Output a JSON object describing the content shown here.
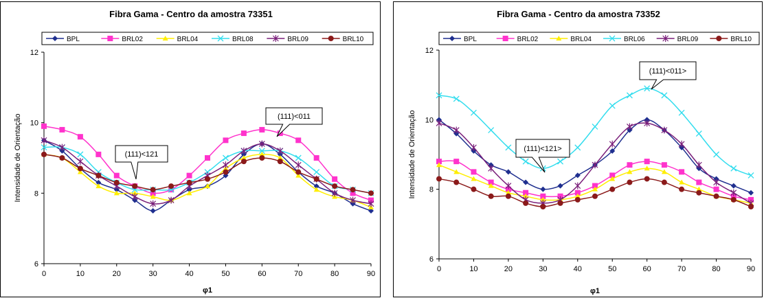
{
  "chart_data": [
    {
      "type": "line",
      "title": "Fibra Gama  -   Centro da amostra 73351",
      "xlabel": "φ1",
      "ylabel": "Intensidade de Orientação",
      "xlim": [
        0,
        90
      ],
      "ylim": [
        6,
        12
      ],
      "x_ticks": [
        "0",
        "10",
        "20",
        "30",
        "40",
        "50",
        "60",
        "70",
        "80",
        "90"
      ],
      "y_ticks": [
        "6",
        "8",
        "10",
        "12"
      ],
      "grid": false,
      "legend_position": "top",
      "x": [
        0,
        5,
        10,
        15,
        20,
        25,
        30,
        35,
        40,
        45,
        50,
        55,
        60,
        65,
        70,
        75,
        80,
        85,
        90
      ],
      "series": [
        {
          "name": "BPL",
          "color": "#1f2f8f",
          "marker": "diamond",
          "values": [
            9.5,
            9.2,
            8.7,
            8.3,
            8.1,
            7.8,
            7.5,
            7.8,
            8.1,
            8.2,
            8.5,
            9.1,
            9.4,
            9.1,
            8.6,
            8.2,
            8.0,
            7.7,
            7.5
          ]
        },
        {
          "name": "BRL02",
          "color": "#ff33cc",
          "marker": "square",
          "values": [
            9.9,
            9.8,
            9.6,
            9.1,
            8.5,
            8.2,
            8.0,
            8.1,
            8.5,
            9.0,
            9.5,
            9.7,
            9.8,
            9.7,
            9.5,
            9.0,
            8.4,
            8.0,
            7.8
          ]
        },
        {
          "name": "BRL04",
          "color": "#ffee00",
          "marker": "triangle",
          "values": [
            9.1,
            9.0,
            8.6,
            8.2,
            8.0,
            8.0,
            7.9,
            7.8,
            8.0,
            8.2,
            8.7,
            9.0,
            9.1,
            9.0,
            8.5,
            8.1,
            7.9,
            7.8,
            7.6
          ]
        },
        {
          "name": "BRL08",
          "color": "#33ddee",
          "marker": "x",
          "values": [
            9.3,
            9.3,
            9.1,
            8.6,
            8.3,
            8.1,
            8.1,
            8.1,
            8.3,
            8.6,
            9.0,
            9.2,
            9.2,
            9.2,
            9.0,
            8.6,
            8.2,
            8.1,
            8.0
          ]
        },
        {
          "name": "BRL09",
          "color": "#7a1f7a",
          "marker": "star",
          "values": [
            9.5,
            9.3,
            8.9,
            8.5,
            8.2,
            7.9,
            7.7,
            7.8,
            8.2,
            8.5,
            8.8,
            9.2,
            9.4,
            9.2,
            8.8,
            8.4,
            8.0,
            7.8,
            7.7
          ]
        },
        {
          "name": "BRL10",
          "color": "#8b1a1a",
          "marker": "circle",
          "values": [
            9.1,
            9.0,
            8.7,
            8.5,
            8.3,
            8.2,
            8.1,
            8.2,
            8.3,
            8.4,
            8.6,
            8.9,
            9.0,
            8.9,
            8.6,
            8.4,
            8.2,
            8.1,
            8.0
          ]
        }
      ],
      "annotations": [
        {
          "text": "(111)<121",
          "x": 30,
          "y": 8.1
        },
        {
          "text": "(111)<011",
          "x": 60,
          "y": 9.4
        }
      ]
    },
    {
      "type": "line",
      "title": "Fibra Gama - Centro da amostra 73352",
      "xlabel": "φ1",
      "ylabel": "Intensidade de Orientação",
      "xlim": [
        0,
        90
      ],
      "ylim": [
        6,
        12
      ],
      "x_ticks": [
        "0",
        "10",
        "20",
        "30",
        "40",
        "50",
        "60",
        "70",
        "80",
        "90"
      ],
      "y_ticks": [
        "6",
        "8",
        "10",
        "12"
      ],
      "grid": false,
      "legend_position": "top",
      "x": [
        0,
        5,
        10,
        15,
        20,
        25,
        30,
        35,
        40,
        45,
        50,
        55,
        60,
        65,
        70,
        75,
        80,
        85,
        90
      ],
      "series": [
        {
          "name": "BPL",
          "color": "#1f2f8f",
          "marker": "diamond",
          "values": [
            10.0,
            9.6,
            9.1,
            8.7,
            8.5,
            8.2,
            8.0,
            8.1,
            8.4,
            8.7,
            9.1,
            9.7,
            10.0,
            9.7,
            9.2,
            8.6,
            8.3,
            8.1,
            7.9
          ]
        },
        {
          "name": "BRL02",
          "color": "#ff33cc",
          "marker": "square",
          "values": [
            8.8,
            8.8,
            8.5,
            8.2,
            8.0,
            7.9,
            7.8,
            7.8,
            7.9,
            8.1,
            8.4,
            8.7,
            8.8,
            8.7,
            8.5,
            8.2,
            8.0,
            7.8,
            7.7
          ]
        },
        {
          "name": "BRL04",
          "color": "#ffee00",
          "marker": "triangle",
          "values": [
            8.7,
            8.5,
            8.3,
            8.1,
            7.9,
            7.8,
            7.7,
            7.7,
            7.8,
            8.0,
            8.3,
            8.5,
            8.6,
            8.5,
            8.2,
            8.0,
            7.8,
            7.7,
            7.6
          ]
        },
        {
          "name": "BRL06",
          "color": "#33ddee",
          "marker": "x",
          "values": [
            10.7,
            10.6,
            10.2,
            9.7,
            9.2,
            8.8,
            8.6,
            8.8,
            9.2,
            9.8,
            10.4,
            10.7,
            10.9,
            10.7,
            10.2,
            9.6,
            9.0,
            8.6,
            8.4
          ]
        },
        {
          "name": "BRL09",
          "color": "#7a1f7a",
          "marker": "star",
          "values": [
            9.9,
            9.7,
            9.2,
            8.6,
            8.1,
            7.7,
            7.6,
            7.7,
            8.1,
            8.7,
            9.3,
            9.8,
            9.9,
            9.7,
            9.3,
            8.7,
            8.2,
            7.9,
            7.6
          ]
        },
        {
          "name": "BRL10",
          "color": "#8b1a1a",
          "marker": "circle",
          "values": [
            8.3,
            8.2,
            8.0,
            7.8,
            7.8,
            7.6,
            7.5,
            7.6,
            7.7,
            7.8,
            8.0,
            8.2,
            8.3,
            8.2,
            8.0,
            7.9,
            7.8,
            7.7,
            7.5
          ]
        }
      ],
      "annotations": [
        {
          "text": "(111)<121>",
          "x": 30,
          "y": 8.6
        },
        {
          "text": "(111)<011>",
          "x": 60,
          "y": 10.9
        }
      ]
    }
  ]
}
